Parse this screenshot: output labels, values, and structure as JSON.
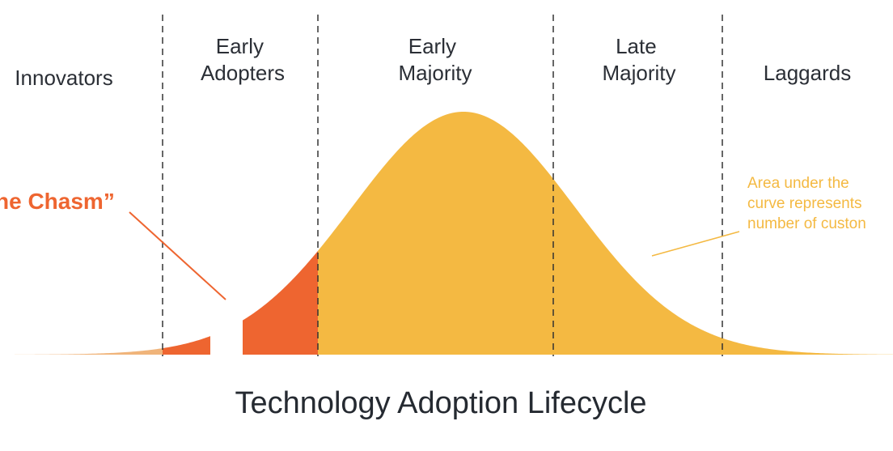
{
  "title": "Technology Adoption Lifecycle",
  "segments": [
    {
      "id": "innovators",
      "lines": [
        "Innovators"
      ]
    },
    {
      "id": "early-adopters",
      "lines": [
        "Early",
        "Adopters"
      ]
    },
    {
      "id": "early-majority",
      "lines": [
        "Early",
        "Majority"
      ]
    },
    {
      "id": "late-majority",
      "lines": [
        "Late",
        "Majority"
      ]
    },
    {
      "id": "laggards",
      "lines": [
        "Laggards"
      ]
    }
  ],
  "chasm_label": "he Chasm”",
  "area_note": [
    "Area under the",
    "curve represents",
    "number of custon"
  ],
  "colors": {
    "innovators": "#f0b47a",
    "early_adopters": "#ee6530",
    "majority_and_laggards": "#f4b942",
    "text_dark": "#2b2f36",
    "divider": "#333333",
    "chasm_text": "#ee6530",
    "note_text": "#f4b942"
  }
}
